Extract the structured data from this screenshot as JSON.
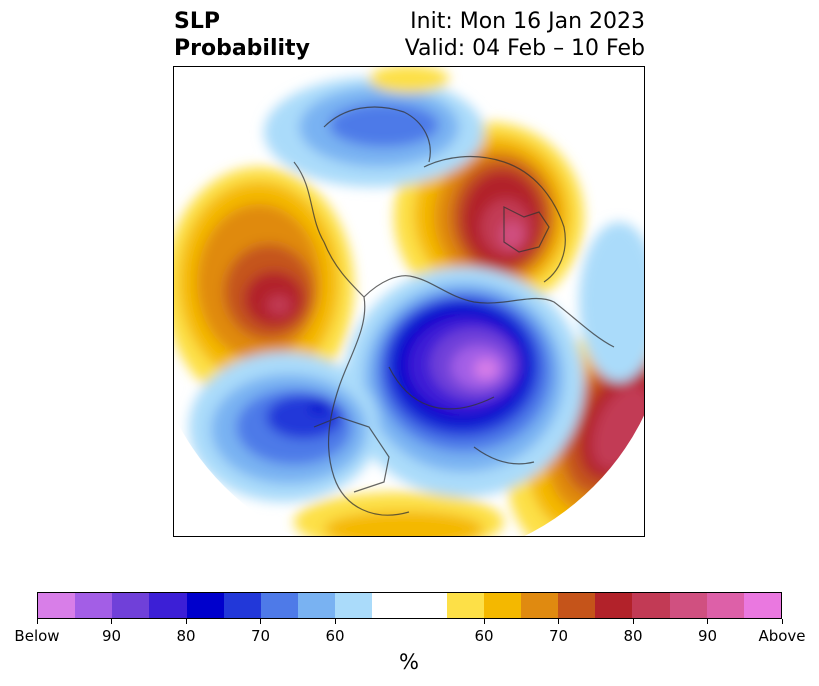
{
  "title": {
    "left_line1": "SLP",
    "left_line2": "Probability",
    "right_line1": "Init: Mon 16 Jan 2023",
    "right_line2": "Valid: 04 Feb – 10 Feb"
  },
  "colorbar": {
    "units": "%",
    "colors": [
      "#d87ee8",
      "#a35ee6",
      "#7040d9",
      "#3c1fd6",
      "#0000cc",
      "#2238d9",
      "#4e7ae8",
      "#79b2f2",
      "#aadbfa",
      "#ffffff",
      "#fde047",
      "#f4b800",
      "#e08a10",
      "#c5541a",
      "#b2222a",
      "#c23a55",
      "#d05080",
      "#dd60a8",
      "#ea78e0"
    ],
    "tick_labels": [
      "Below",
      "90",
      "80",
      "70",
      "60",
      "60",
      "70",
      "80",
      "90",
      "Above"
    ]
  },
  "map": {
    "projection": "north-polar-stereographic",
    "variable": "sea level pressure tercile probability"
  }
}
